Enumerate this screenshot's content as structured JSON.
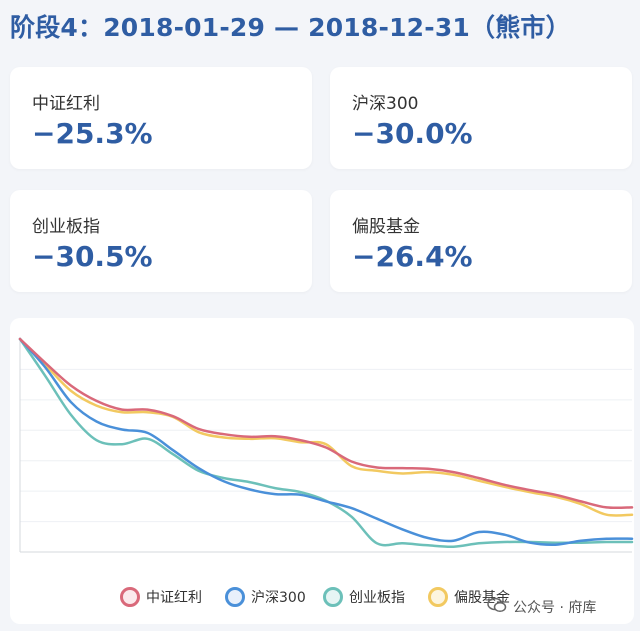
{
  "header": {
    "title": "阶段4：2018-01-29 — 2018-12-31（熊市）"
  },
  "cards": [
    {
      "label": "中证红利",
      "value": "−25.3%"
    },
    {
      "label": "沪深300",
      "value": "−30.0%"
    },
    {
      "label": "创业板指",
      "value": "−30.5%"
    },
    {
      "label": "偏股基金",
      "value": "−26.4%"
    }
  ],
  "watermark": {
    "text": "公众号 · 府库"
  },
  "chart_data": {
    "type": "line",
    "x": [
      0,
      1,
      2,
      3,
      4,
      5,
      6,
      7,
      8,
      9,
      10,
      11,
      12,
      13,
      14,
      15,
      16,
      17,
      18,
      19,
      20,
      21,
      22,
      23,
      24
    ],
    "ylim": [
      -32,
      0
    ],
    "grid": true,
    "legend": "bottom",
    "series": [
      {
        "name": "中证红利",
        "color": "#d9697a",
        "values": [
          0,
          -3.6,
          -7.0,
          -9.3,
          -10.6,
          -10.6,
          -11.6,
          -13.5,
          -14.3,
          -14.7,
          -14.6,
          -15.2,
          -16.3,
          -18.4,
          -19.3,
          -19.4,
          -19.5,
          -20.0,
          -20.9,
          -21.9,
          -22.7,
          -23.4,
          -24.4,
          -25.3,
          -25.3
        ]
      },
      {
        "name": "沪深300",
        "color": "#4a90d9",
        "values": [
          0,
          -4.3,
          -9.5,
          -12.4,
          -13.6,
          -14.1,
          -16.7,
          -19.4,
          -21.4,
          -22.6,
          -23.3,
          -23.4,
          -24.4,
          -25.4,
          -27.0,
          -28.6,
          -29.9,
          -30.3,
          -29.0,
          -29.4,
          -30.6,
          -30.9,
          -30.3,
          -30.0,
          -30.0
        ]
      },
      {
        "name": "创业板指",
        "color": "#6cc0b9",
        "values": [
          0,
          -5.6,
          -11.4,
          -15.2,
          -15.8,
          -15.0,
          -17.3,
          -19.8,
          -20.9,
          -21.5,
          -22.4,
          -23.0,
          -24.3,
          -26.7,
          -30.7,
          -30.7,
          -31.0,
          -31.2,
          -30.7,
          -30.5,
          -30.5,
          -30.6,
          -30.6,
          -30.5,
          -30.5
        ]
      },
      {
        "name": "偏股基金",
        "color": "#f2c960",
        "values": [
          0,
          -3.9,
          -7.8,
          -10.0,
          -11.0,
          -11.0,
          -11.7,
          -14.0,
          -14.8,
          -15.0,
          -14.9,
          -15.5,
          -15.8,
          -19.1,
          -19.8,
          -20.2,
          -20.0,
          -20.4,
          -21.3,
          -22.2,
          -23.0,
          -23.7,
          -24.8,
          -26.4,
          -26.4
        ]
      }
    ]
  }
}
